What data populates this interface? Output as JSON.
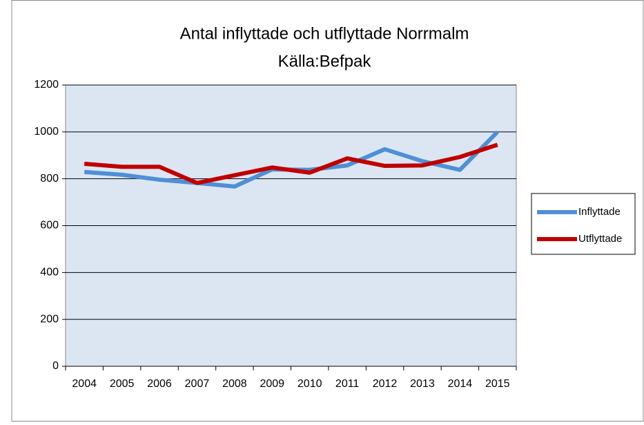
{
  "chart_data": {
    "type": "line",
    "title": "Antal inflyttade och utflyttade Norrmalm",
    "subtitle": "Källa:Befpak",
    "categories": [
      "2004",
      "2005",
      "2006",
      "2007",
      "2008",
      "2009",
      "2010",
      "2011",
      "2012",
      "2013",
      "2014",
      "2015"
    ],
    "series": [
      {
        "name": "Inflyttade",
        "color": "#4f8fd6",
        "values": [
          829,
          817,
          796,
          782,
          767,
          840,
          838,
          857,
          926,
          875,
          838,
          1000
        ]
      },
      {
        "name": "Utflyttade",
        "color": "#c00000",
        "values": [
          864,
          851,
          851,
          782,
          815,
          848,
          826,
          887,
          855,
          857,
          893,
          945
        ]
      }
    ],
    "ylim": [
      0,
      1200
    ],
    "yticks": [
      0,
      200,
      400,
      600,
      800,
      1000,
      1200
    ],
    "grid": true,
    "legend": "right"
  }
}
